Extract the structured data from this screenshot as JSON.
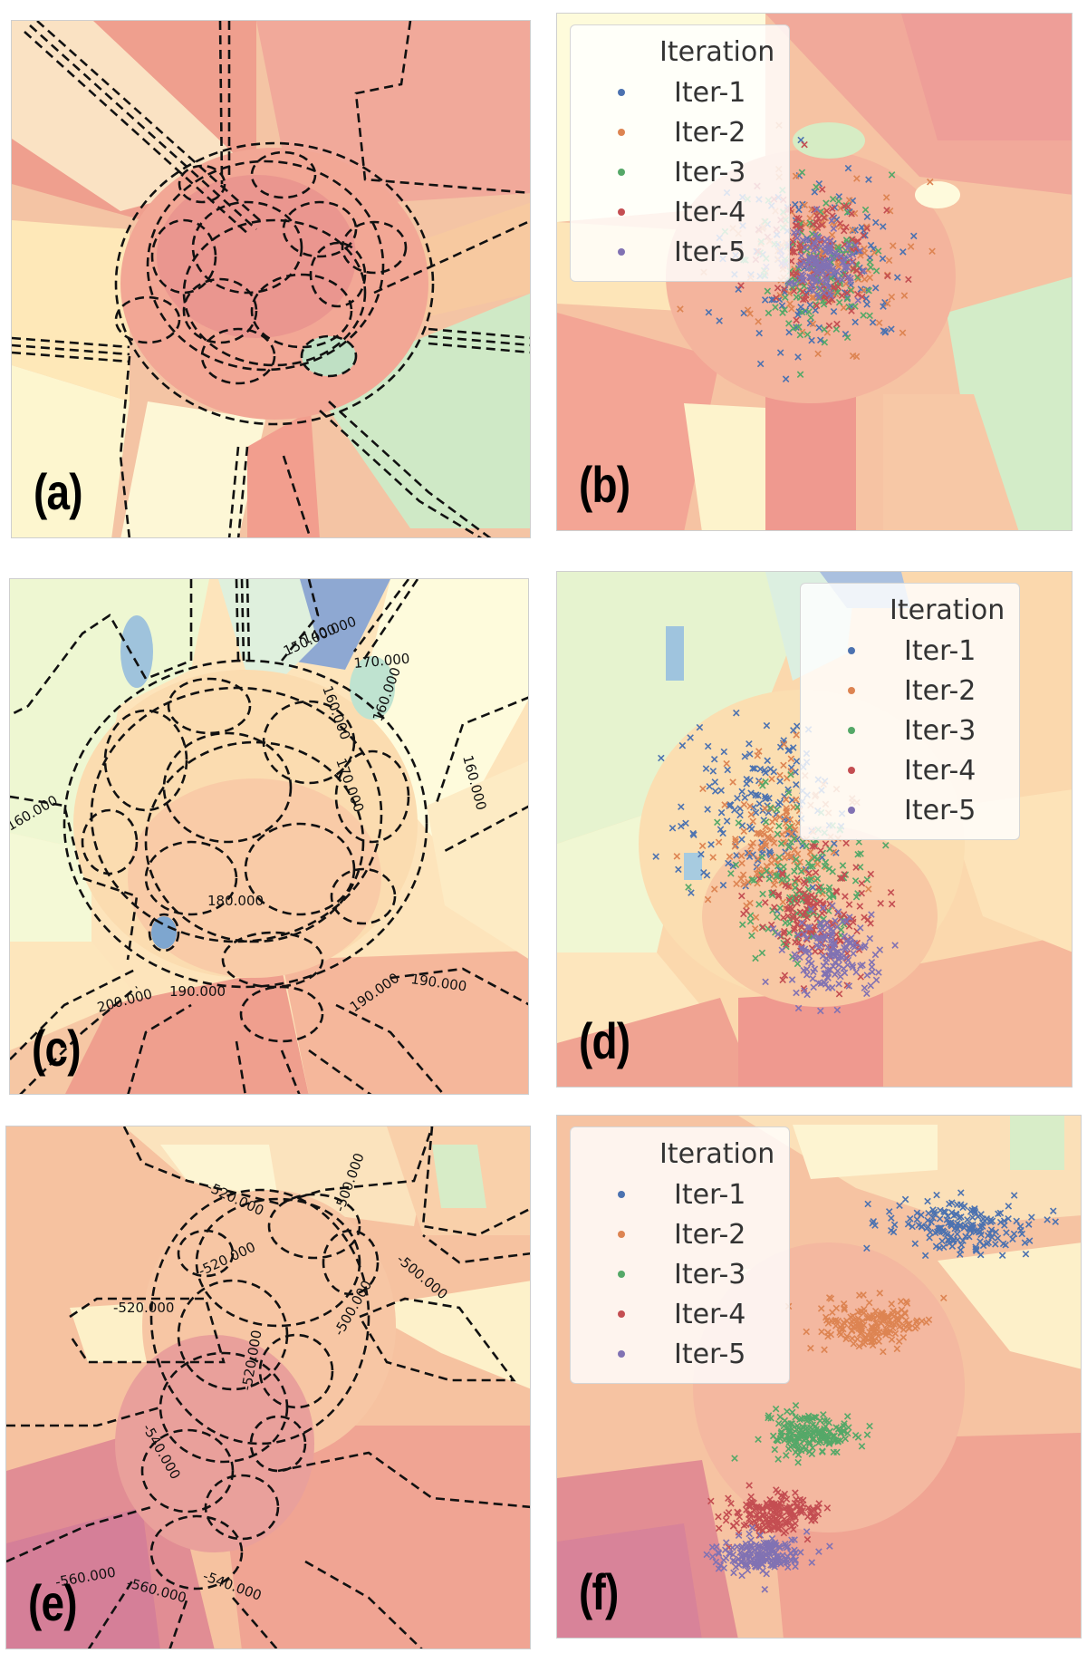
{
  "colors": {
    "iter1": "#4c72b0",
    "iter2": "#dd8452",
    "iter3": "#55a868",
    "iter4": "#c44e52",
    "iter5": "#8172b3"
  },
  "chart_data": [
    {
      "panel": "(a)",
      "type": "contour",
      "contour_labels": []
    },
    {
      "panel": "(b)",
      "type": "scatter",
      "marker": "x",
      "legend_title": "Iteration",
      "legend_position": "top-left",
      "series": [
        {
          "name": "Iter-1",
          "center": [
            0.5,
            0.48
          ],
          "spread": [
            0.15,
            0.15
          ]
        },
        {
          "name": "Iter-2",
          "center": [
            0.51,
            0.48
          ],
          "spread": [
            0.13,
            0.13
          ]
        },
        {
          "name": "Iter-3",
          "center": [
            0.5,
            0.48
          ],
          "spread": [
            0.11,
            0.11
          ]
        },
        {
          "name": "Iter-4",
          "center": [
            0.51,
            0.47
          ],
          "spread": [
            0.09,
            0.09
          ]
        },
        {
          "name": "Iter-5",
          "center": [
            0.51,
            0.48
          ],
          "spread": [
            0.06,
            0.06
          ]
        }
      ]
    },
    {
      "panel": "(c)",
      "type": "contour",
      "contour_labels": [
        "140.000",
        "150.000",
        "170.000",
        "160.000",
        "160.000",
        "160.000",
        "160.000",
        "170.000",
        "180.000",
        "190.000",
        "190.000",
        "190.000",
        "200.000"
      ]
    },
    {
      "panel": "(d)",
      "type": "scatter",
      "marker": "x",
      "legend_title": "Iteration",
      "legend_position": "top-right",
      "series": [
        {
          "name": "Iter-1",
          "center": [
            0.38,
            0.46
          ],
          "spread": [
            0.12,
            0.14
          ]
        },
        {
          "name": "Iter-2",
          "center": [
            0.43,
            0.52
          ],
          "spread": [
            0.11,
            0.13
          ]
        },
        {
          "name": "Iter-3",
          "center": [
            0.48,
            0.6
          ],
          "spread": [
            0.1,
            0.11
          ]
        },
        {
          "name": "Iter-4",
          "center": [
            0.5,
            0.66
          ],
          "spread": [
            0.09,
            0.09
          ]
        },
        {
          "name": "Iter-5",
          "center": [
            0.53,
            0.74
          ],
          "spread": [
            0.07,
            0.07
          ]
        }
      ]
    },
    {
      "panel": "(e)",
      "type": "contour",
      "contour_labels": [
        "-520.000",
        "-500.000",
        "-500.000",
        "-520.000",
        "-520.000",
        "-500.000",
        "-520.000",
        "-540.000",
        "-540.000",
        "-560.000",
        "-560.000"
      ]
    },
    {
      "panel": "(f)",
      "type": "scatter",
      "marker": "x",
      "legend_title": "Iteration",
      "legend_position": "top-left",
      "series": [
        {
          "name": "Iter-1",
          "center": [
            0.76,
            0.21
          ],
          "spread": [
            0.11,
            0.045
          ]
        },
        {
          "name": "Iter-2",
          "center": [
            0.6,
            0.4
          ],
          "spread": [
            0.08,
            0.04
          ]
        },
        {
          "name": "Iter-3",
          "center": [
            0.48,
            0.61
          ],
          "spread": [
            0.07,
            0.035
          ]
        },
        {
          "name": "Iter-4",
          "center": [
            0.41,
            0.76
          ],
          "spread": [
            0.07,
            0.03
          ]
        },
        {
          "name": "Iter-5",
          "center": [
            0.38,
            0.84
          ],
          "spread": [
            0.07,
            0.03
          ]
        }
      ]
    }
  ],
  "panels": {
    "a": {
      "label": "(a)"
    },
    "b": {
      "label": "(b)",
      "legend_title": "Iteration",
      "legend_items": [
        "Iter-1",
        "Iter-2",
        "Iter-3",
        "Iter-4",
        "Iter-5"
      ]
    },
    "c": {
      "label": "(c)"
    },
    "d": {
      "label": "(d)",
      "legend_title": "Iteration",
      "legend_items": [
        "Iter-1",
        "Iter-2",
        "Iter-3",
        "Iter-4",
        "Iter-5"
      ]
    },
    "e": {
      "label": "(e)"
    },
    "f": {
      "label": "(f)",
      "legend_title": "Iteration",
      "legend_items": [
        "Iter-1",
        "Iter-2",
        "Iter-3",
        "Iter-4",
        "Iter-5"
      ]
    }
  }
}
